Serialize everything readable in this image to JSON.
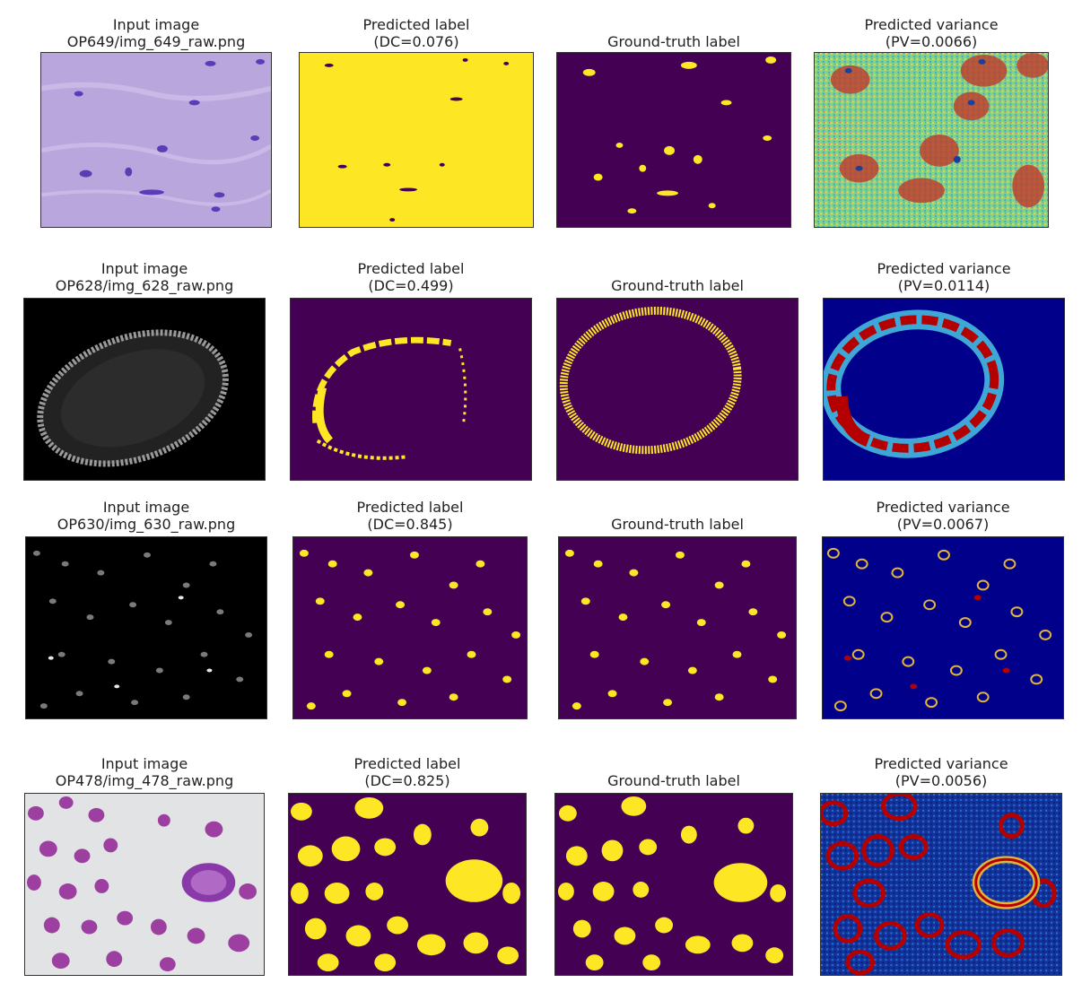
{
  "rows": [
    {
      "input": {
        "title": "Input image",
        "subtitle": "OP649/img_649_raw.png"
      },
      "pred": {
        "title": "Predicted label",
        "subtitle": "(DC=0.076)"
      },
      "gt": {
        "title": "Ground-truth label"
      },
      "var": {
        "title": "Predicted variance",
        "subtitle": "(PV=0.0066)"
      }
    },
    {
      "input": {
        "title": "Input image",
        "subtitle": "OP628/img_628_raw.png"
      },
      "pred": {
        "title": "Predicted label",
        "subtitle": "(DC=0.499)"
      },
      "gt": {
        "title": "Ground-truth label"
      },
      "var": {
        "title": "Predicted variance",
        "subtitle": "(PV=0.0114)"
      }
    },
    {
      "input": {
        "title": "Input image",
        "subtitle": "OP630/img_630_raw.png"
      },
      "pred": {
        "title": "Predicted label",
        "subtitle": "(DC=0.845)"
      },
      "gt": {
        "title": "Ground-truth label"
      },
      "var": {
        "title": "Predicted variance",
        "subtitle": "(PV=0.0067)"
      }
    },
    {
      "input": {
        "title": "Input image",
        "subtitle": "OP478/img_478_raw.png"
      },
      "pred": {
        "title": "Predicted label",
        "subtitle": "(DC=0.825)"
      },
      "gt": {
        "title": "Ground-truth label"
      },
      "var": {
        "title": "Predicted variance",
        "subtitle": "(PV=0.0056)"
      }
    }
  ],
  "colors": {
    "label_background": "#440154",
    "label_foreground": "#fde725",
    "variance_low": "#00008b",
    "variance_high": "#b40000"
  }
}
